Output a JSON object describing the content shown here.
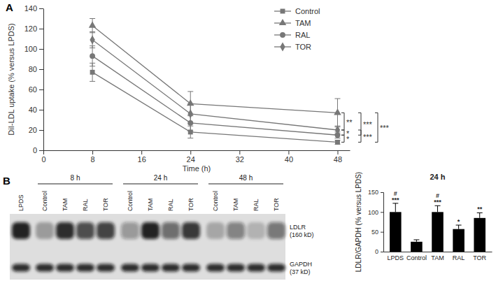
{
  "chart_data": [
    {
      "panel": "A",
      "type": "line",
      "x": [
        8,
        24,
        48
      ],
      "xlim": [
        0,
        50
      ],
      "xticks": [
        0,
        8,
        16,
        24,
        32,
        40,
        48
      ],
      "ylim": [
        0,
        140
      ],
      "yticks": [
        0,
        20,
        40,
        60,
        80,
        100,
        120,
        140
      ],
      "x_label": "Time (h)",
      "y_label": "DiI-LDL uptake (% versus LPDS)",
      "legend": "top-right",
      "series": [
        {
          "name": "Control",
          "color": "#777777",
          "marker": "square",
          "values": [
            77,
            18,
            8
          ],
          "errors": [
            9,
            6,
            2
          ]
        },
        {
          "name": "TAM",
          "color": "#777777",
          "marker": "triangle",
          "values": [
            123,
            46,
            37
          ],
          "errors": [
            7,
            12,
            14
          ]
        },
        {
          "name": "RAL",
          "color": "#777777",
          "marker": "circle",
          "values": [
            93,
            27,
            15
          ],
          "errors": [
            10,
            8,
            3
          ]
        },
        {
          "name": "TOR",
          "color": "#777777",
          "marker": "diamond",
          "values": [
            109,
            36,
            20
          ],
          "errors": [
            8,
            10,
            4
          ]
        }
      ],
      "comparisons": [
        {
          "text": "**",
          "between": [
            "TAM",
            "TOR"
          ]
        },
        {
          "text": "*",
          "between": [
            "TOR",
            "RAL"
          ]
        },
        {
          "text": "*",
          "between": [
            "RAL",
            "Control"
          ]
        },
        {
          "text": "***",
          "between": [
            "TAM",
            "RAL"
          ]
        },
        {
          "text": "***",
          "between": [
            "TOR",
            "Control"
          ]
        },
        {
          "text": "***",
          "between": [
            "TAM",
            "Control"
          ]
        }
      ]
    },
    {
      "panel": "B",
      "type": "blot",
      "reference": "LPDS",
      "groups": [
        {
          "label": "8 h",
          "lanes": [
            "Control",
            "TAM",
            "RAL",
            "TOR"
          ]
        },
        {
          "label": "24 h",
          "lanes": [
            "Control",
            "TAM",
            "RAL",
            "TOR"
          ]
        },
        {
          "label": "48 h",
          "lanes": [
            "Control",
            "TAM",
            "RAL",
            "TOR"
          ]
        }
      ],
      "bands": [
        {
          "label": [
            "LDLR",
            "(160 kD)"
          ],
          "values": [
            90,
            30,
            85,
            70,
            75,
            35,
            90,
            55,
            80,
            25,
            45,
            20,
            50
          ]
        },
        {
          "label": [
            "GAPDH",
            "(37 kD)"
          ],
          "values": [
            85,
            85,
            85,
            85,
            85,
            85,
            85,
            85,
            85,
            85,
            85,
            85,
            85
          ]
        }
      ]
    },
    {
      "type": "bar",
      "title": "24 h",
      "categories": [
        "LPDS",
        "Control",
        "TAM",
        "RAL",
        "TOR"
      ],
      "values": [
        100,
        25,
        100,
        57,
        85
      ],
      "errors": [
        22,
        5,
        16,
        10,
        13
      ],
      "color": "#000000",
      "ylim": [
        0,
        150
      ],
      "yticks": [
        0,
        50,
        100,
        150
      ],
      "y_label": "LDLR/GAPDH (% versus LPDS)",
      "significance": [
        [
          "***",
          "#"
        ],
        [],
        [
          "***",
          "#"
        ],
        [
          "*"
        ],
        [
          "**"
        ]
      ]
    }
  ]
}
